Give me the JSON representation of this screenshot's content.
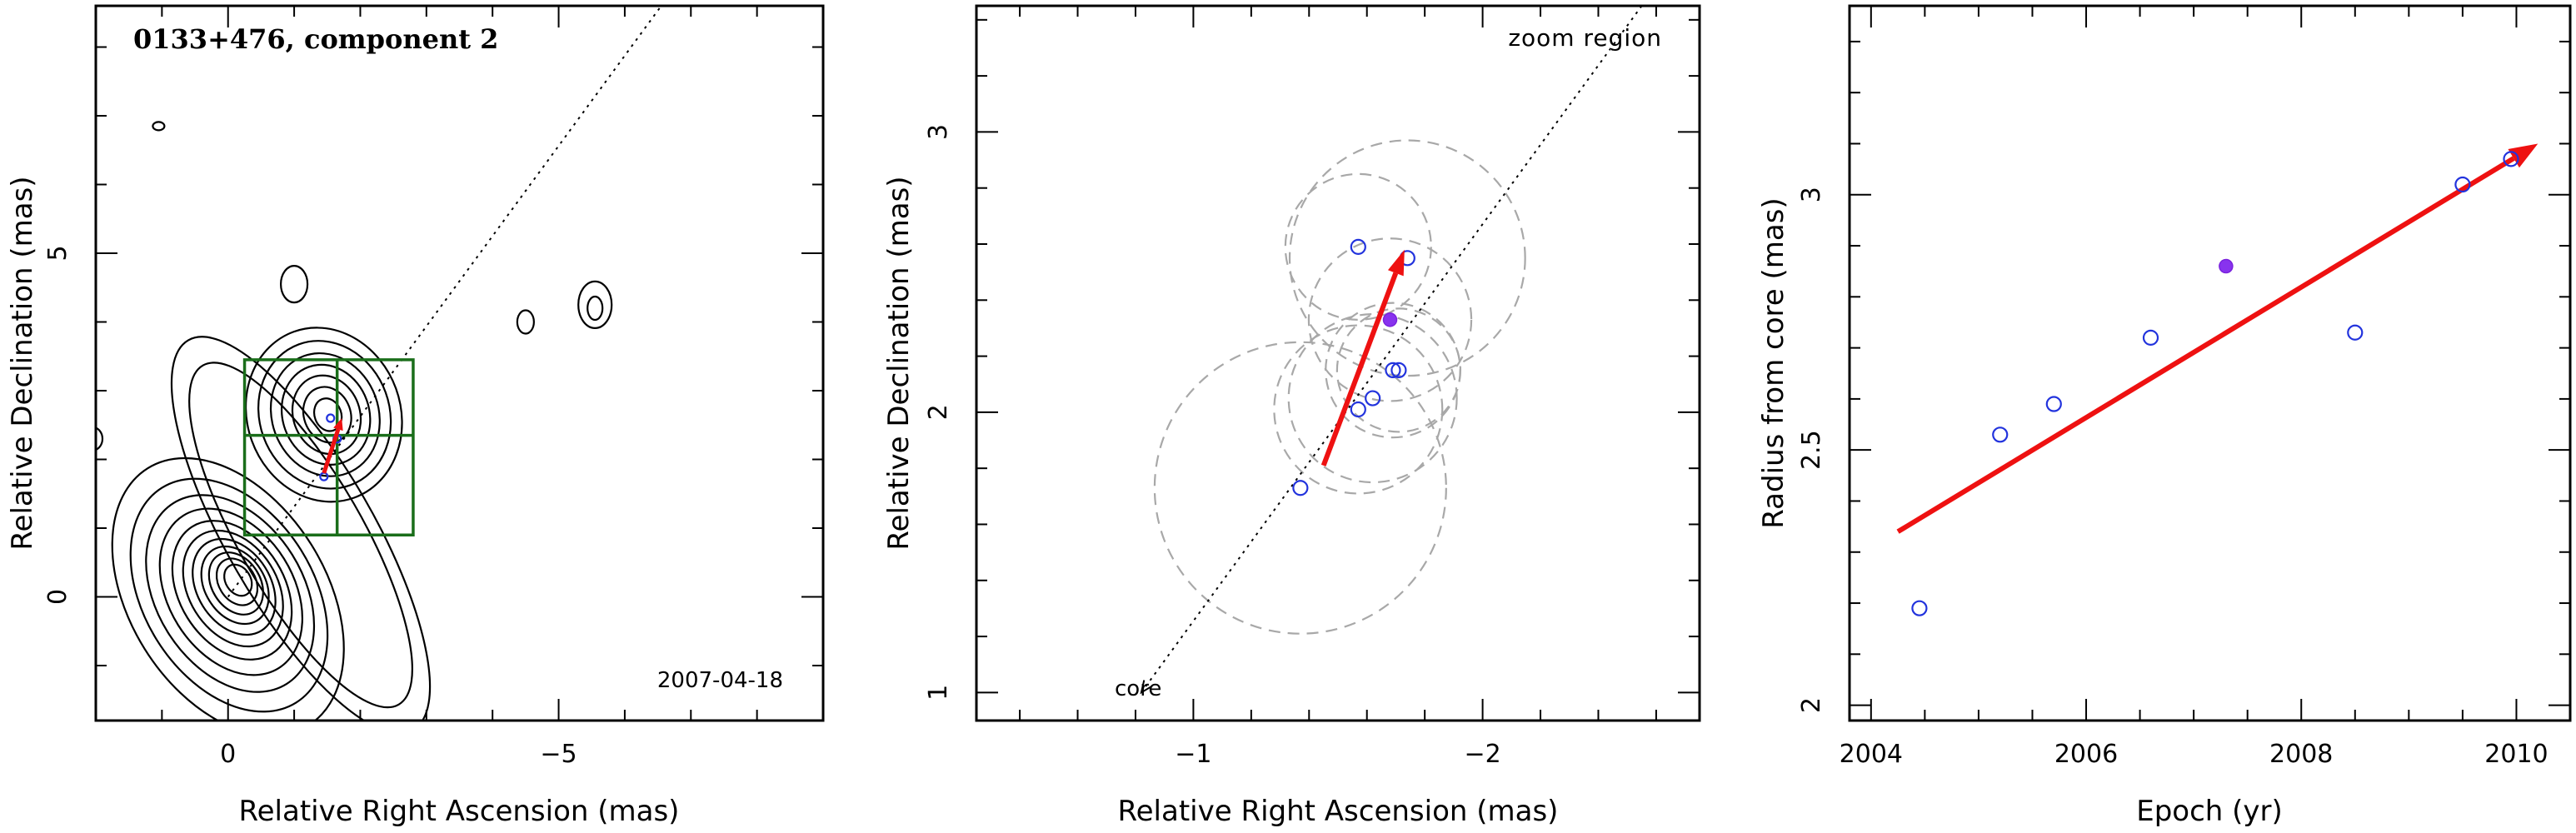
{
  "chart_data": [
    {
      "type": "contour",
      "title": "0133+476, component 2",
      "annotation": "2007-04-18",
      "xlabel": "Relative Right Ascension (mas)",
      "ylabel": "Relative Declination (mas)",
      "xlim": [
        2.0,
        -9.0
      ],
      "ylim": [
        -1.8,
        8.6
      ],
      "xticks": [
        0,
        -5
      ],
      "xtick_labels": [
        "0",
        "−5"
      ],
      "yticks": [
        0,
        5
      ],
      "ytick_labels": [
        "0",
        "5"
      ],
      "jet_direction_line": {
        "from": [
          0,
          0
        ],
        "through": [
          -1.6,
          2.1
        ]
      },
      "zoom_boxes": [
        {
          "x": [
            -0.25,
            -2.8
          ],
          "y": [
            0.9,
            3.45
          ]
        },
        {
          "x": [
            -1.65
          ],
          "y": [
            2.35
          ],
          "note": "crosshair dividing the zoom box"
        }
      ],
      "component_points": [
        {
          "x": -1.55,
          "y": 2.6,
          "filled": false
        },
        {
          "x": -1.45,
          "y": 1.75,
          "filled": false
        },
        {
          "x": -1.65,
          "y": 2.3,
          "filled": false
        }
      ],
      "motion_vector": {
        "from": [
          -1.45,
          1.8
        ],
        "to": [
          -1.72,
          2.6
        ]
      },
      "contour_colors": {
        "contour": "#000000",
        "box": "#1a6e1a",
        "vector": "#ee1111"
      }
    },
    {
      "type": "scatter",
      "annotation_top": "zoom region",
      "annotation_bottom": "core",
      "xlabel": "Relative Right Ascension (mas)",
      "ylabel": "Relative Declination (mas)",
      "xlim": [
        -0.25,
        -2.75
      ],
      "ylim": [
        0.9,
        3.45
      ],
      "xticks": [
        -1,
        -2
      ],
      "xtick_labels": [
        "−1",
        "−2"
      ],
      "yticks": [
        1,
        2,
        3
      ],
      "ytick_labels": [
        "1",
        "2",
        "3"
      ],
      "points": [
        {
          "x": -1.37,
          "y": 1.73,
          "filled": false
        },
        {
          "x": -1.57,
          "y": 2.01,
          "filled": false
        },
        {
          "x": -1.62,
          "y": 2.05,
          "filled": false
        },
        {
          "x": -1.69,
          "y": 2.15,
          "filled": false
        },
        {
          "x": -1.71,
          "y": 2.15,
          "filled": false
        },
        {
          "x": -1.57,
          "y": 2.59,
          "filled": false
        },
        {
          "x": -1.74,
          "y": 2.55,
          "filled": false
        },
        {
          "x": -1.68,
          "y": 2.33,
          "filled": true
        }
      ],
      "error_circles": [
        {
          "x": -1.37,
          "y": 1.73,
          "r": 0.52
        },
        {
          "x": -1.57,
          "y": 2.01,
          "r": 0.3
        },
        {
          "x": -1.62,
          "y": 2.05,
          "r": 0.3
        },
        {
          "x": -1.69,
          "y": 2.15,
          "r": 0.24
        },
        {
          "x": -1.71,
          "y": 2.15,
          "r": 0.22
        },
        {
          "x": -1.57,
          "y": 2.59,
          "r": 0.26
        },
        {
          "x": -1.74,
          "y": 2.55,
          "r": 0.42
        },
        {
          "x": -1.68,
          "y": 2.33,
          "r": 0.29
        }
      ],
      "jet_direction_line": {
        "from": [
          -0.82,
          1.0
        ],
        "to": [
          -2.55,
          3.45
        ]
      },
      "motion_vector": {
        "from": [
          -1.45,
          1.81
        ],
        "to": [
          -1.73,
          2.58
        ]
      },
      "colors": {
        "open": "#2233dd",
        "filled": "#8833ee",
        "circle": "#a8a8a8",
        "vector": "#ee1111"
      }
    },
    {
      "type": "scatter",
      "xlabel": "Epoch (yr)",
      "ylabel": "Radius from core (mas)",
      "xlim": [
        2003.8,
        2010.5
      ],
      "ylim": [
        1.97,
        3.37
      ],
      "xticks": [
        2004,
        2006,
        2008,
        2010
      ],
      "xtick_labels": [
        "2004",
        "2006",
        "2008",
        "2010"
      ],
      "yticks": [
        2,
        2.5,
        3
      ],
      "ytick_labels": [
        "2",
        "2.5",
        "3"
      ],
      "points": [
        {
          "x": 2004.45,
          "y": 2.19,
          "filled": false
        },
        {
          "x": 2005.2,
          "y": 2.53,
          "filled": false
        },
        {
          "x": 2005.7,
          "y": 2.59,
          "filled": false
        },
        {
          "x": 2006.6,
          "y": 2.72,
          "filled": false
        },
        {
          "x": 2007.3,
          "y": 2.86,
          "filled": true
        },
        {
          "x": 2008.5,
          "y": 2.73,
          "filled": false
        },
        {
          "x": 2009.5,
          "y": 3.02,
          "filled": false
        },
        {
          "x": 2009.95,
          "y": 3.07,
          "filled": false
        }
      ],
      "fit_vector": {
        "from": [
          2004.25,
          2.34
        ],
        "to": [
          2010.2,
          3.1
        ]
      },
      "colors": {
        "open": "#2233dd",
        "filled": "#8833ee",
        "vector": "#ee1111"
      }
    }
  ]
}
